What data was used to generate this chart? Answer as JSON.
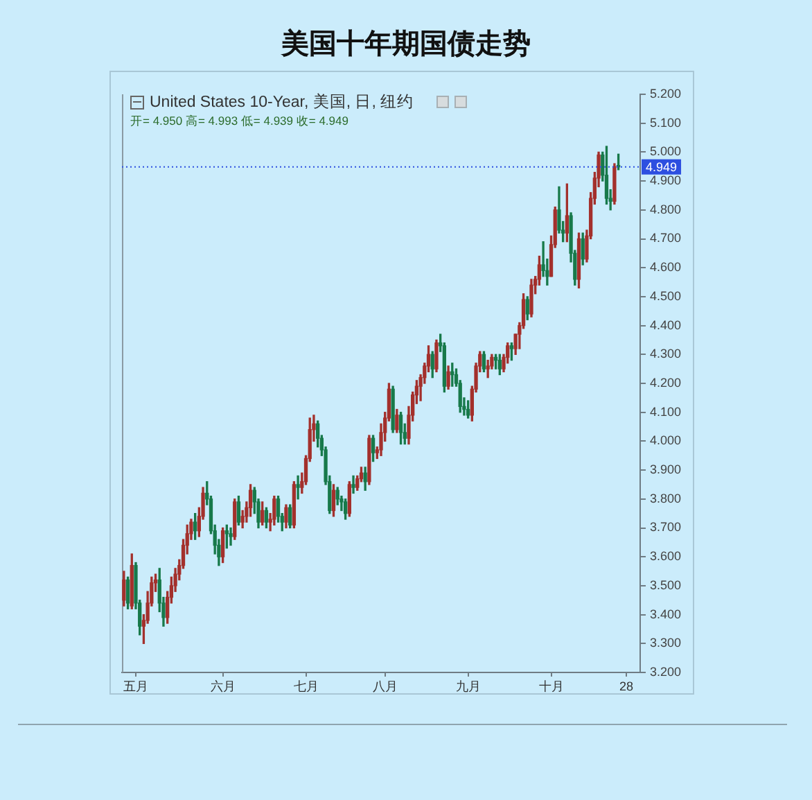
{
  "chart_data": {
    "type": "candlestick",
    "title": "美国十年期国债走势",
    "subtitle": "United States 10-Year, 美国, 日, 纽约",
    "annotations": [
      "开= 4.950 高= 4.993 低= 4.939 收= 4.949"
    ],
    "categories": [
      null,
      null,
      null,
      "五月",
      null,
      null,
      null,
      null,
      null,
      null,
      null,
      null,
      null,
      null,
      null,
      null,
      null,
      null,
      null,
      null,
      null,
      null,
      null,
      null,
      null,
      "六月",
      null,
      null,
      null,
      null,
      null,
      null,
      null,
      null,
      null,
      null,
      null,
      null,
      null,
      null,
      null,
      null,
      null,
      null,
      null,
      null,
      "七月",
      null,
      null,
      null,
      null,
      null,
      null,
      null,
      null,
      null,
      null,
      null,
      null,
      null,
      null,
      null,
      null,
      null,
      null,
      null,
      "八月",
      null,
      null,
      null,
      null,
      null,
      null,
      null,
      null,
      null,
      null,
      null,
      null,
      null,
      null,
      null,
      null,
      null,
      null,
      null,
      null,
      "九月",
      null,
      null,
      null,
      null,
      null,
      null,
      null,
      null,
      null,
      null,
      null,
      null,
      null,
      null,
      null,
      null,
      null,
      null,
      null,
      null,
      "十月",
      null,
      null,
      null,
      null,
      null,
      null,
      null,
      null,
      null,
      null,
      null,
      null,
      null,
      null,
      null,
      null,
      null,
      null,
      "28",
      null,
      null,
      null
    ],
    "ohlc": [
      [
        3.45,
        3.55,
        3.43,
        3.52
      ],
      [
        3.52,
        3.53,
        3.42,
        3.44
      ],
      [
        3.43,
        3.61,
        3.42,
        3.57
      ],
      [
        3.57,
        3.58,
        3.42,
        3.44
      ],
      [
        3.44,
        3.45,
        3.33,
        3.36
      ],
      [
        3.36,
        3.4,
        3.3,
        3.38
      ],
      [
        3.38,
        3.48,
        3.37,
        3.44
      ],
      [
        3.44,
        3.53,
        3.43,
        3.51
      ],
      [
        3.51,
        3.54,
        3.48,
        3.52
      ],
      [
        3.52,
        3.56,
        3.41,
        3.44
      ],
      [
        3.44,
        3.46,
        3.36,
        3.39
      ],
      [
        3.39,
        3.48,
        3.37,
        3.46
      ],
      [
        3.46,
        3.53,
        3.44,
        3.5
      ],
      [
        3.5,
        3.56,
        3.48,
        3.54
      ],
      [
        3.54,
        3.59,
        3.52,
        3.57
      ],
      [
        3.57,
        3.66,
        3.56,
        3.64
      ],
      [
        3.64,
        3.71,
        3.61,
        3.68
      ],
      [
        3.68,
        3.73,
        3.66,
        3.72
      ],
      [
        3.72,
        3.75,
        3.66,
        3.69
      ],
      [
        3.69,
        3.77,
        3.67,
        3.74
      ],
      [
        3.74,
        3.84,
        3.73,
        3.82
      ],
      [
        3.82,
        3.86,
        3.78,
        3.8
      ],
      [
        3.8,
        3.81,
        3.68,
        3.69
      ],
      [
        3.69,
        3.71,
        3.61,
        3.64
      ],
      [
        3.64,
        3.66,
        3.57,
        3.6
      ],
      [
        3.6,
        3.7,
        3.58,
        3.69
      ],
      [
        3.69,
        3.71,
        3.63,
        3.68
      ],
      [
        3.68,
        3.7,
        3.64,
        3.67
      ],
      [
        3.67,
        3.8,
        3.66,
        3.79
      ],
      [
        3.79,
        3.81,
        3.71,
        3.72
      ],
      [
        3.72,
        3.76,
        3.7,
        3.74
      ],
      [
        3.74,
        3.79,
        3.72,
        3.77
      ],
      [
        3.77,
        3.85,
        3.74,
        3.83
      ],
      [
        3.83,
        3.84,
        3.75,
        3.79
      ],
      [
        3.79,
        3.8,
        3.7,
        3.72
      ],
      [
        3.72,
        3.79,
        3.71,
        3.76
      ],
      [
        3.76,
        3.77,
        3.7,
        3.72
      ],
      [
        3.72,
        3.75,
        3.69,
        3.73
      ],
      [
        3.73,
        3.81,
        3.71,
        3.8
      ],
      [
        3.8,
        3.81,
        3.72,
        3.74
      ],
      [
        3.74,
        3.75,
        3.69,
        3.72
      ],
      [
        3.72,
        3.78,
        3.7,
        3.77
      ],
      [
        3.77,
        3.78,
        3.7,
        3.71
      ],
      [
        3.71,
        3.86,
        3.7,
        3.85
      ],
      [
        3.85,
        3.88,
        3.8,
        3.84
      ],
      [
        3.84,
        3.89,
        3.82,
        3.86
      ],
      [
        3.86,
        3.95,
        3.85,
        3.94
      ],
      [
        3.94,
        4.08,
        3.93,
        4.04
      ],
      [
        4.04,
        4.09,
        4.0,
        4.06
      ],
      [
        4.06,
        4.07,
        3.98,
        4.01
      ],
      [
        4.01,
        4.02,
        3.95,
        3.97
      ],
      [
        3.97,
        3.98,
        3.85,
        3.86
      ],
      [
        3.86,
        3.88,
        3.75,
        3.76
      ],
      [
        3.76,
        3.85,
        3.74,
        3.83
      ],
      [
        3.83,
        3.84,
        3.78,
        3.8
      ],
      [
        3.8,
        3.81,
        3.76,
        3.79
      ],
      [
        3.79,
        3.8,
        3.73,
        3.75
      ],
      [
        3.75,
        3.86,
        3.74,
        3.85
      ],
      [
        3.85,
        3.88,
        3.82,
        3.84
      ],
      [
        3.84,
        3.88,
        3.83,
        3.87
      ],
      [
        3.87,
        3.91,
        3.86,
        3.89
      ],
      [
        3.89,
        3.91,
        3.83,
        3.86
      ],
      [
        3.86,
        4.02,
        3.85,
        4.01
      ],
      [
        4.01,
        4.02,
        3.93,
        3.96
      ],
      [
        3.96,
        3.98,
        3.94,
        3.97
      ],
      [
        3.97,
        4.06,
        3.95,
        4.03
      ],
      [
        4.03,
        4.1,
        4.0,
        4.08
      ],
      [
        4.08,
        4.2,
        4.07,
        4.18
      ],
      [
        4.18,
        4.19,
        4.03,
        4.04
      ],
      [
        4.04,
        4.11,
        4.03,
        4.09
      ],
      [
        4.09,
        4.1,
        3.99,
        4.03
      ],
      [
        4.03,
        4.06,
        3.99,
        4.01
      ],
      [
        4.01,
        4.12,
        3.99,
        4.09
      ],
      [
        4.09,
        4.17,
        4.07,
        4.16
      ],
      [
        4.16,
        4.21,
        4.13,
        4.19
      ],
      [
        4.19,
        4.23,
        4.14,
        4.22
      ],
      [
        4.22,
        4.27,
        4.2,
        4.26
      ],
      [
        4.26,
        4.33,
        4.24,
        4.3
      ],
      [
        4.3,
        4.31,
        4.22,
        4.25
      ],
      [
        4.25,
        4.35,
        4.24,
        4.34
      ],
      [
        4.34,
        4.37,
        4.31,
        4.33
      ],
      [
        4.33,
        4.34,
        4.17,
        4.19
      ],
      [
        4.19,
        4.26,
        4.18,
        4.24
      ],
      [
        4.24,
        4.27,
        4.19,
        4.23
      ],
      [
        4.23,
        4.25,
        4.19,
        4.2
      ],
      [
        4.2,
        4.21,
        4.1,
        4.12
      ],
      [
        4.12,
        4.15,
        4.09,
        4.11
      ],
      [
        4.11,
        4.14,
        4.08,
        4.09
      ],
      [
        4.09,
        4.19,
        4.07,
        4.18
      ],
      [
        4.18,
        4.27,
        4.17,
        4.26
      ],
      [
        4.26,
        4.31,
        4.24,
        4.3
      ],
      [
        4.3,
        4.31,
        4.24,
        4.25
      ],
      [
        4.25,
        4.28,
        4.22,
        4.26
      ],
      [
        4.26,
        4.3,
        4.25,
        4.29
      ],
      [
        4.29,
        4.3,
        4.25,
        4.28
      ],
      [
        4.28,
        4.3,
        4.23,
        4.25
      ],
      [
        4.25,
        4.3,
        4.24,
        4.29
      ],
      [
        4.29,
        4.34,
        4.27,
        4.33
      ],
      [
        4.33,
        4.34,
        4.28,
        4.32
      ],
      [
        4.32,
        4.37,
        4.3,
        4.37
      ],
      [
        4.37,
        4.41,
        4.32,
        4.4
      ],
      [
        4.4,
        4.51,
        4.39,
        4.49
      ],
      [
        4.49,
        4.5,
        4.42,
        4.44
      ],
      [
        4.44,
        4.56,
        4.43,
        4.54
      ],
      [
        4.54,
        4.57,
        4.51,
        4.56
      ],
      [
        4.56,
        4.64,
        4.54,
        4.61
      ],
      [
        4.61,
        4.69,
        4.57,
        4.59
      ],
      [
        4.59,
        4.63,
        4.54,
        4.57
      ],
      [
        4.57,
        4.71,
        4.57,
        4.68
      ],
      [
        4.68,
        4.81,
        4.67,
        4.8
      ],
      [
        4.8,
        4.88,
        4.72,
        4.73
      ],
      [
        4.73,
        4.76,
        4.69,
        4.72
      ],
      [
        4.72,
        4.89,
        4.69,
        4.78
      ],
      [
        4.78,
        4.79,
        4.62,
        4.65
      ],
      [
        4.65,
        4.66,
        4.54,
        4.56
      ],
      [
        4.56,
        4.72,
        4.53,
        4.7
      ],
      [
        4.7,
        4.72,
        4.61,
        4.63
      ],
      [
        4.63,
        4.73,
        4.62,
        4.71
      ],
      [
        4.71,
        4.86,
        4.7,
        4.84
      ],
      [
        4.84,
        4.93,
        4.82,
        4.91
      ],
      [
        4.91,
        5.0,
        4.88,
        4.99
      ],
      [
        4.99,
        5.0,
        4.9,
        4.92
      ],
      [
        4.92,
        5.02,
        4.82,
        4.84
      ],
      [
        4.84,
        4.87,
        4.8,
        4.83
      ],
      [
        4.83,
        4.96,
        4.82,
        4.95
      ],
      [
        4.95,
        4.993,
        4.939,
        4.949
      ],
      null,
      null,
      null,
      null,
      null
    ],
    "colors": [
      "#a3302c",
      "#17794a",
      "#a3302c",
      "#17794a",
      "#17794a",
      "#a3302c",
      "#a3302c",
      "#a3302c",
      "#a3302c",
      "#17794a",
      "#17794a",
      "#a3302c",
      "#a3302c",
      "#a3302c",
      "#a3302c",
      "#a3302c",
      "#a3302c",
      "#a3302c",
      "#17794a",
      "#a3302c",
      "#a3302c",
      "#17794a",
      "#17794a",
      "#17794a",
      "#17794a",
      "#a3302c",
      "#17794a",
      "#17794a",
      "#a3302c",
      "#17794a",
      "#a3302c",
      "#a3302c",
      "#a3302c",
      "#17794a",
      "#17794a",
      "#a3302c",
      "#17794a",
      "#a3302c",
      "#a3302c",
      "#17794a",
      "#17794a",
      "#a3302c",
      "#17794a",
      "#a3302c",
      "#17794a",
      "#a3302c",
      "#a3302c",
      "#a3302c",
      "#a3302c",
      "#17794a",
      "#17794a",
      "#17794a",
      "#17794a",
      "#a3302c",
      "#17794a",
      "#17794a",
      "#17794a",
      "#a3302c",
      "#17794a",
      "#a3302c",
      "#a3302c",
      "#17794a",
      "#a3302c",
      "#17794a",
      "#a3302c",
      "#a3302c",
      "#a3302c",
      "#a3302c",
      "#17794a",
      "#a3302c",
      "#17794a",
      "#17794a",
      "#a3302c",
      "#a3302c",
      "#a3302c",
      "#a3302c",
      "#a3302c",
      "#a3302c",
      "#17794a",
      "#a3302c",
      "#17794a",
      "#17794a",
      "#a3302c",
      "#17794a",
      "#17794a",
      "#17794a",
      "#17794a",
      "#17794a",
      "#a3302c",
      "#a3302c",
      "#a3302c",
      "#17794a",
      "#a3302c",
      "#a3302c",
      "#17794a",
      "#17794a",
      "#a3302c",
      "#a3302c",
      "#17794a",
      "#a3302c",
      "#a3302c",
      "#a3302c",
      "#17794a",
      "#a3302c",
      "#a3302c",
      "#a3302c",
      "#17794a",
      "#17794a",
      "#a3302c",
      "#a3302c",
      "#17794a",
      "#17794a",
      "#a3302c",
      "#17794a",
      "#17794a",
      "#a3302c",
      "#17794a",
      "#a3302c",
      "#a3302c",
      "#a3302c",
      "#a3302c",
      "#17794a",
      "#17794a",
      "#17794a",
      "#a3302c",
      "#17794a",
      null,
      null,
      null,
      null,
      null
    ],
    "ylim": [
      3.2,
      5.2
    ],
    "yticks": [
      {
        "value": 3.2,
        "label": "3.200"
      },
      {
        "value": 3.3,
        "label": "3.300"
      },
      {
        "value": 3.4,
        "label": "3.400"
      },
      {
        "value": 3.5,
        "label": "3.500"
      },
      {
        "value": 3.6,
        "label": "3.600"
      },
      {
        "value": 3.7,
        "label": "3.700"
      },
      {
        "value": 3.8,
        "label": "3.800"
      },
      {
        "value": 3.9,
        "label": "3.900"
      },
      {
        "value": 4.0,
        "label": "4.000"
      },
      {
        "value": 4.1,
        "label": "4.100"
      },
      {
        "value": 4.2,
        "label": "4.200"
      },
      {
        "value": 4.3,
        "label": "4.300"
      },
      {
        "value": 4.4,
        "label": "4.400"
      },
      {
        "value": 4.5,
        "label": "4.500"
      },
      {
        "value": 4.6,
        "label": "4.600"
      },
      {
        "value": 4.7,
        "label": "4.700"
      },
      {
        "value": 4.8,
        "label": "4.800"
      },
      {
        "value": 4.9,
        "label": "4.900"
      },
      {
        "value": 5.0,
        "label": "5.000"
      },
      {
        "value": 5.1,
        "label": "5.100"
      },
      {
        "value": 5.2,
        "label": "5.200"
      }
    ],
    "ref_lines": [
      {
        "axis": "y",
        "value": 4.949,
        "label": "4.949",
        "color": "#2d4fe0",
        "line_style": "dotted"
      }
    ],
    "grid": false
  }
}
